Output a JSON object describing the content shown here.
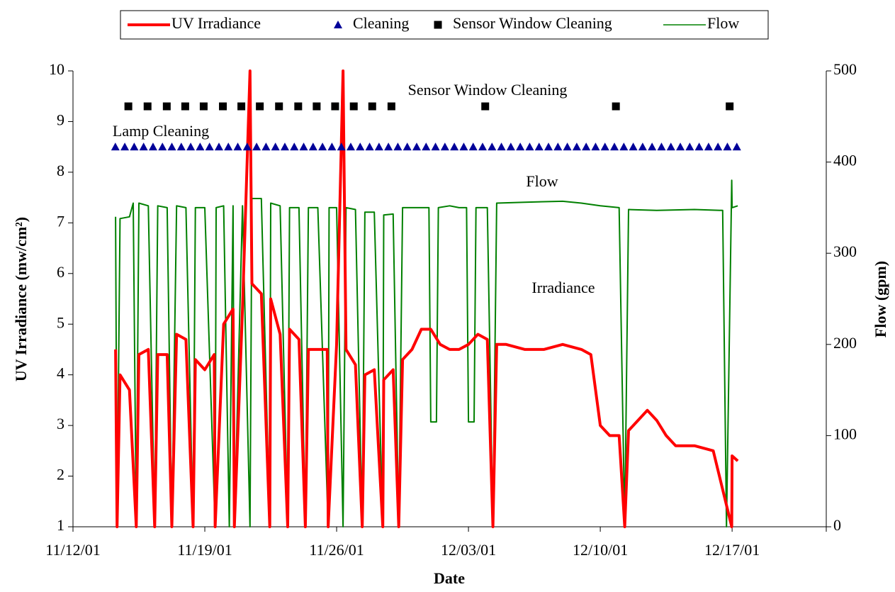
{
  "chart_data": {
    "type": "combo",
    "xlabel": "Date",
    "ylabel": "UV Irradiance (mw/cm²)",
    "y2label": "Flow (gpm)",
    "annotations": [
      "Sensor Window Cleaning",
      "Lamp Cleaning",
      "Flow",
      "Irradiance"
    ],
    "legend": "top",
    "xlim": [
      0,
      40
    ],
    "xticks": [
      {
        "value": 0,
        "label": "11/12/01"
      },
      {
        "value": 7,
        "label": "11/19/01"
      },
      {
        "value": 14,
        "label": "11/26/01"
      },
      {
        "value": 21,
        "label": "12/03/01"
      },
      {
        "value": 28,
        "label": "12/10/01"
      },
      {
        "value": 35,
        "label": "12/17/01"
      }
    ],
    "ylim": [
      1,
      10
    ],
    "yticks": [
      1,
      2,
      3,
      4,
      5,
      6,
      7,
      8,
      9,
      10
    ],
    "y2lim": [
      0,
      500
    ],
    "y2ticks": [
      0,
      100,
      200,
      300,
      400,
      500
    ],
    "series": [
      {
        "name": "UV Irradiance",
        "type": "line",
        "color": "#ff0000",
        "x": [
          2.26,
          2.34,
          2.5,
          3,
          3.36,
          3.5,
          4,
          4.34,
          4.5,
          5,
          5.25,
          5.5,
          6,
          6.38,
          6.5,
          7,
          7.5,
          7.55,
          8,
          8.5,
          8.57,
          9,
          9.4,
          9.5,
          10,
          10.45,
          10.5,
          11,
          11.4,
          11.5,
          12,
          12.34,
          12.5,
          13,
          13.5,
          13.55,
          14,
          14.34,
          14.5,
          15,
          15.36,
          15.5,
          16,
          16.45,
          16.5,
          17,
          17.3,
          17.5,
          18,
          18.5,
          19,
          19.5,
          20,
          20.5,
          21,
          21.5,
          22,
          22.3,
          22.5,
          23,
          24,
          25,
          26,
          27,
          27.5,
          28,
          28.5,
          29,
          29.3,
          29.5,
          30,
          30.5,
          31,
          31.5,
          32,
          33,
          34,
          34.98,
          35,
          35.3
        ],
        "values": [
          4.5,
          1,
          4.0,
          3.7,
          1,
          4.4,
          4.5,
          1,
          4.4,
          4.4,
          1,
          4.8,
          4.7,
          1,
          4.3,
          4.1,
          4.4,
          1,
          5.0,
          5.3,
          1,
          5.3,
          10,
          5.8,
          5.6,
          1,
          5.5,
          4.8,
          1,
          4.9,
          4.7,
          1,
          4.5,
          4.5,
          4.5,
          1,
          4.6,
          10,
          4.5,
          4.2,
          1,
          4.0,
          4.1,
          1,
          3.9,
          4.1,
          1,
          4.3,
          4.5,
          4.9,
          4.9,
          4.6,
          4.5,
          4.5,
          4.6,
          4.8,
          4.7,
          1,
          4.6,
          4.6,
          4.5,
          4.5,
          4.6,
          4.5,
          4.4,
          3.0,
          2.8,
          2.8,
          1,
          2.9,
          3.1,
          3.3,
          3.1,
          2.8,
          2.6,
          2.6,
          2.5,
          1,
          2.4,
          2.3
        ]
      },
      {
        "name": "Cleaning",
        "type": "scatter",
        "marker": "triangle",
        "color": "#000099",
        "x": [
          2.25,
          2.75,
          3.25,
          3.75,
          4.25,
          4.75,
          5.25,
          5.75,
          6.25,
          6.75,
          7.25,
          7.75,
          8.25,
          8.75,
          9.25,
          9.75,
          10.25,
          10.75,
          11.25,
          11.75,
          12.25,
          12.75,
          13.25,
          13.75,
          14.25,
          14.75,
          15.25,
          15.75,
          16.25,
          16.75,
          17.25,
          17.75,
          18.25,
          18.75,
          19.25,
          19.75,
          20.25,
          20.75,
          21.25,
          21.75,
          22.25,
          22.75,
          23.25,
          23.75,
          24.25,
          24.75,
          25.25,
          25.75,
          26.25,
          26.75,
          27.25,
          27.75,
          28.25,
          28.75,
          29.25,
          29.75,
          30.25,
          30.75,
          31.25,
          31.75,
          32.25,
          32.75,
          33.25,
          33.75,
          34.25,
          34.75,
          35.25
        ],
        "values": [
          8.5,
          8.5,
          8.5,
          8.5,
          8.5,
          8.5,
          8.5,
          8.5,
          8.5,
          8.5,
          8.5,
          8.5,
          8.5,
          8.5,
          8.5,
          8.5,
          8.5,
          8.5,
          8.5,
          8.5,
          8.5,
          8.5,
          8.5,
          8.5,
          8.5,
          8.5,
          8.5,
          8.5,
          8.5,
          8.5,
          8.5,
          8.5,
          8.5,
          8.5,
          8.5,
          8.5,
          8.5,
          8.5,
          8.5,
          8.5,
          8.5,
          8.5,
          8.5,
          8.5,
          8.5,
          8.5,
          8.5,
          8.5,
          8.5,
          8.5,
          8.5,
          8.5,
          8.5,
          8.5,
          8.5,
          8.5,
          8.5,
          8.5,
          8.5,
          8.5,
          8.5,
          8.5,
          8.5,
          8.5,
          8.5,
          8.5,
          8.5
        ]
      },
      {
        "name": "Sensor Window Cleaning",
        "type": "scatter",
        "marker": "square",
        "color": "#000000",
        "x": [
          2.94,
          3.96,
          4.98,
          5.96,
          6.94,
          7.96,
          8.94,
          9.92,
          10.94,
          11.96,
          12.94,
          13.92,
          14.91,
          15.89,
          16.91,
          21.89,
          28.83,
          34.87
        ],
        "values": [
          9.3,
          9.3,
          9.3,
          9.3,
          9.3,
          9.3,
          9.3,
          9.3,
          9.3,
          9.3,
          9.3,
          9.3,
          9.3,
          9.3,
          9.3,
          9.3,
          9.3,
          9.3
        ]
      },
      {
        "name": "Flow",
        "type": "line",
        "color": "#008000",
        "axis": "y2",
        "x": [
          2.26,
          2.34,
          2.5,
          3,
          3.2,
          3.36,
          3.5,
          4,
          4.34,
          4.5,
          5,
          5.25,
          5.5,
          6,
          6.38,
          6.5,
          7,
          7.55,
          7.6,
          8,
          8.3,
          8.5,
          8.57,
          9,
          9.4,
          9.5,
          10,
          10.45,
          10.5,
          11,
          11.4,
          11.5,
          12,
          12.34,
          12.5,
          13,
          13.55,
          13.6,
          14,
          14.34,
          14.5,
          15,
          15.36,
          15.5,
          16,
          16.45,
          16.5,
          17,
          17.3,
          17.5,
          18,
          18.5,
          18.9,
          19,
          19.3,
          19.4,
          20,
          20.5,
          20.9,
          21,
          21.3,
          21.4,
          22,
          22.3,
          22.5,
          24,
          26,
          27,
          28,
          29,
          29.3,
          29.5,
          31,
          33,
          34.5,
          34.7,
          34.98,
          35,
          35.3
        ],
        "values": [
          340,
          0,
          338,
          340,
          355,
          0,
          355,
          352,
          0,
          352,
          350,
          0,
          352,
          350,
          0,
          350,
          350,
          0,
          350,
          352,
          0,
          352,
          0,
          352,
          0,
          360,
          360,
          0,
          355,
          352,
          0,
          350,
          350,
          0,
          350,
          350,
          0,
          350,
          350,
          0,
          350,
          348,
          0,
          345,
          345,
          0,
          342,
          343,
          0,
          350,
          350,
          350,
          350,
          115,
          115,
          350,
          352,
          350,
          350,
          115,
          115,
          350,
          350,
          0,
          355,
          356,
          357,
          355,
          352,
          350,
          0,
          348,
          347,
          348,
          347,
          0,
          380,
          350,
          352
        ]
      }
    ]
  }
}
